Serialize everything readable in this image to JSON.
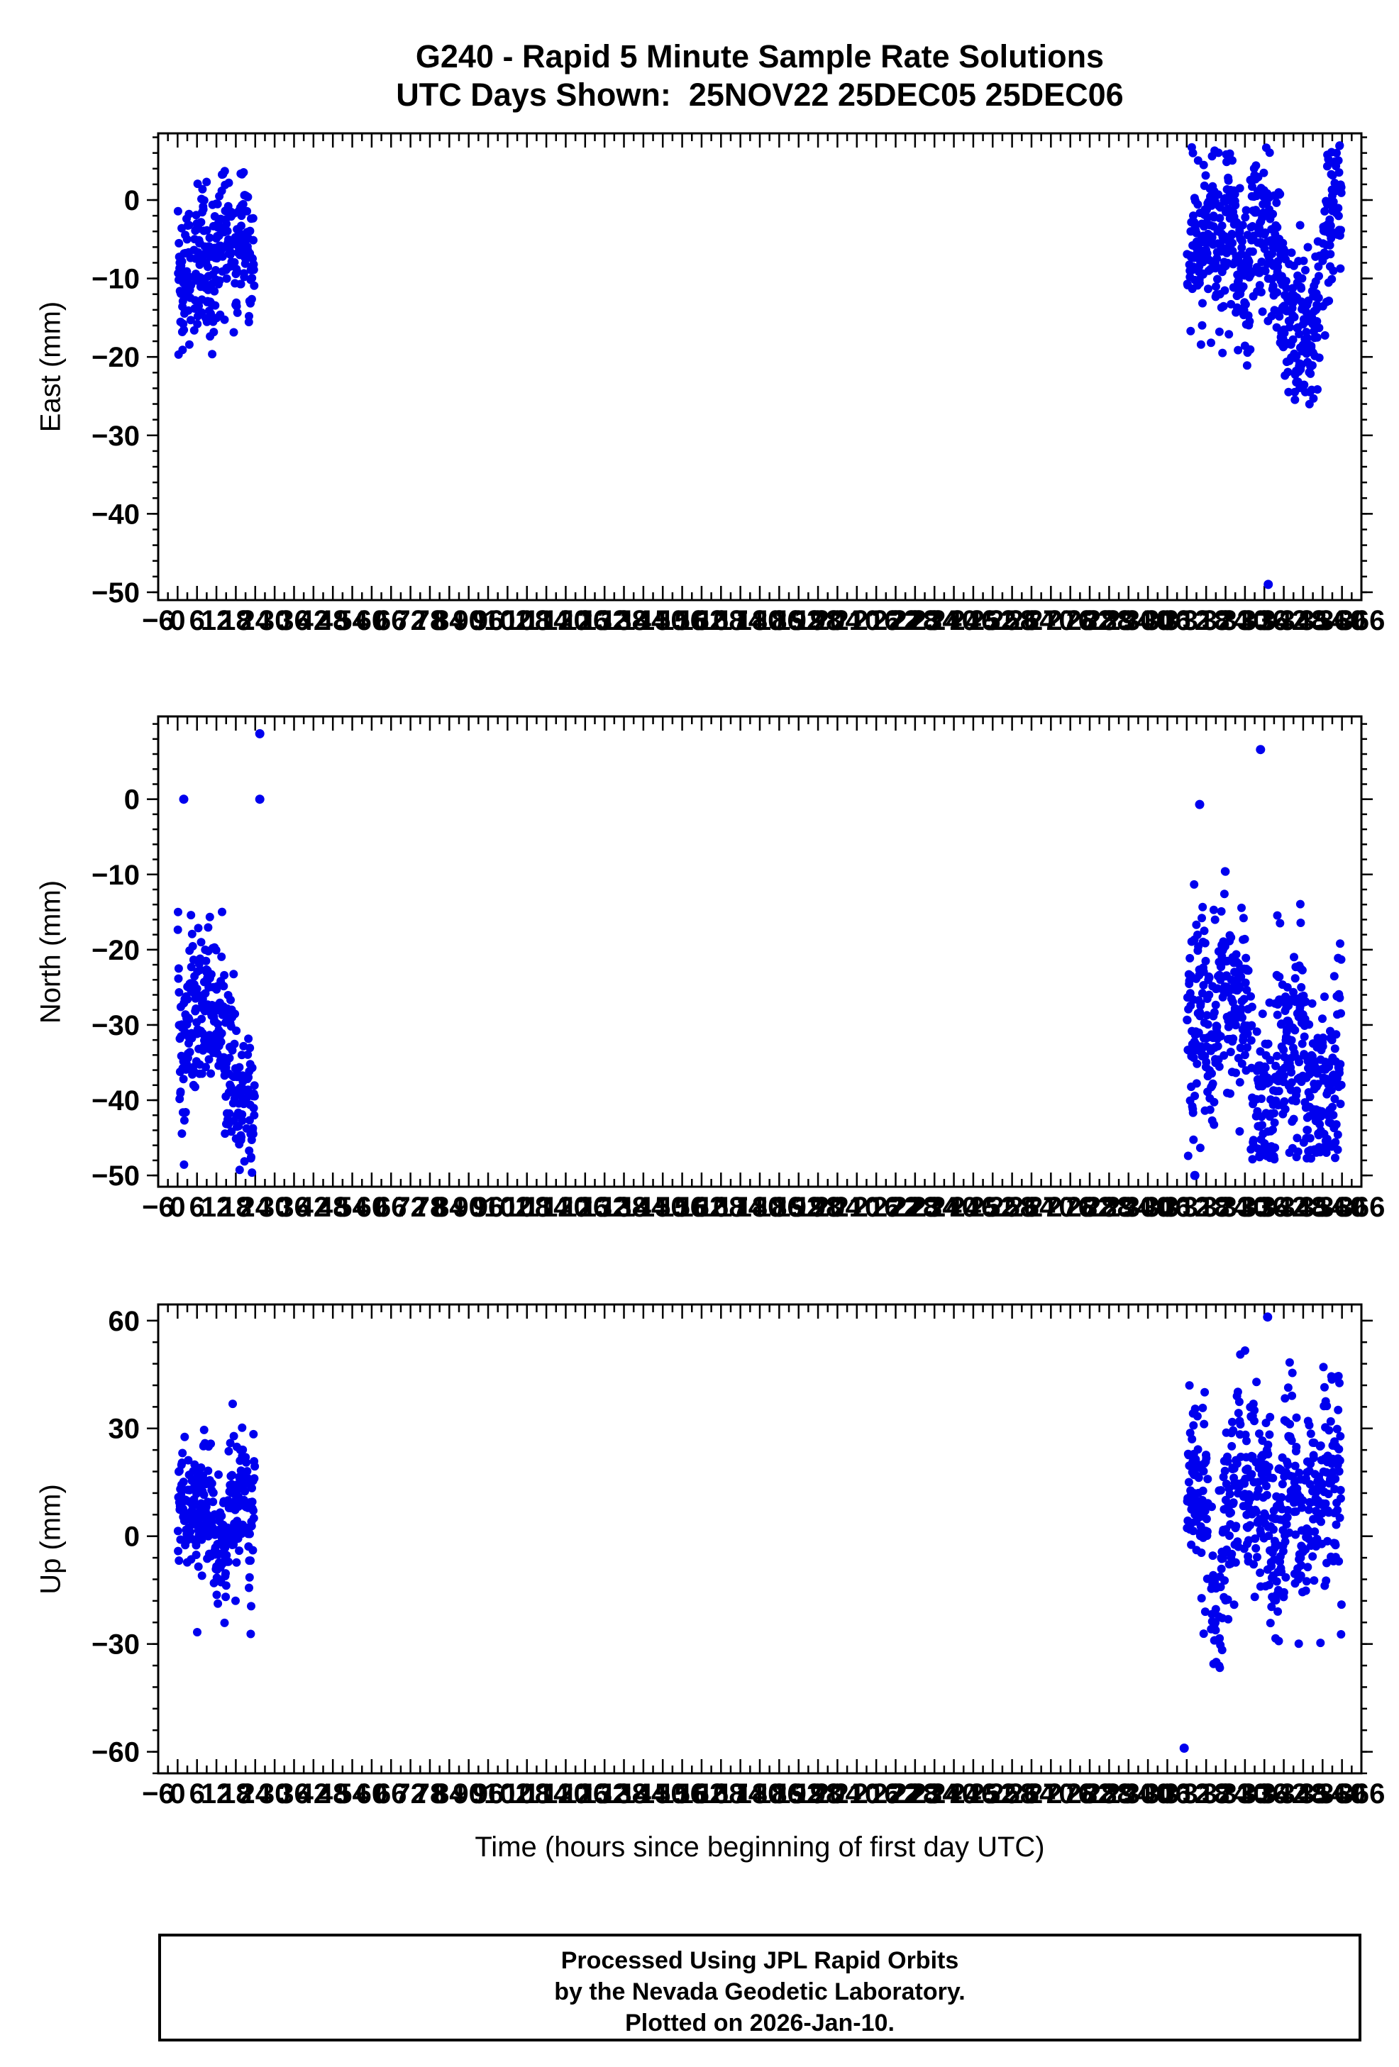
{
  "chart_data": {
    "type": "scatter",
    "title": "G240 - Rapid 5 Minute Sample Rate Solutions",
    "subtitle": "UTC Days Shown:  25NOV22 25DEC05 25DEC06",
    "station": "G240",
    "utc_days": [
      "25NOV22",
      "25DEC05",
      "25DEC06"
    ],
    "xlabel": "Time (hours since beginning of first day UTC)",
    "xlim": [
      -6,
      366
    ],
    "x_major_tick": 6,
    "x_minor_tick": 3,
    "marker_color": "#0000EE",
    "frame_color": "#000000",
    "panels": [
      {
        "ylabel": "East (mm)",
        "ylim": [
          -51,
          8.5
        ],
        "yticks": [
          0,
          -10,
          -20,
          -30,
          -40,
          -50
        ],
        "y_minor_tick": 2,
        "clusters": [
          {
            "x_start": 0.1,
            "x_end": 23.9,
            "n": 288,
            "mean": -9,
            "std": 4.3,
            "walk": 3,
            "y_min": -23,
            "y_max": 4.2
          },
          {
            "x_start": 312.1,
            "x_end": 359.9,
            "n": 576,
            "mean": -10,
            "std": 5,
            "walk": 3.5,
            "y_min": -27.5,
            "y_max": 7
          }
        ],
        "outliers": [
          [
            337.2,
            -49
          ]
        ]
      },
      {
        "ylabel": "North (mm)",
        "ylim": [
          -51.5,
          11
        ],
        "yticks": [
          0,
          -10,
          -20,
          -30,
          -40,
          -50
        ],
        "y_minor_tick": 2,
        "clusters": [
          {
            "x_start": 0.1,
            "x_end": 23.9,
            "n": 288,
            "mean": -30,
            "std": 6.2,
            "walk": 4,
            "y_min": -50,
            "y_max": -14.5
          },
          {
            "x_start": 312.1,
            "x_end": 359.9,
            "n": 576,
            "mean": -30,
            "std": 7,
            "walk": 4,
            "y_min": -48,
            "y_max": -9.5
          }
        ],
        "outliers": [
          [
            1.9,
            0
          ],
          [
            25.4,
            8.7
          ],
          [
            25.4,
            0
          ],
          [
            334.8,
            6.6
          ],
          [
            316.0,
            -0.7
          ],
          [
            314.5,
            -50
          ]
        ]
      },
      {
        "ylabel": "Up (mm)",
        "ylim": [
          -66,
          64.5
        ],
        "yticks": [
          60,
          30,
          0,
          -30,
          -60
        ],
        "y_minor_tick": 6,
        "clusters": [
          {
            "x_start": 0.1,
            "x_end": 23.9,
            "n": 288,
            "mean": 12,
            "std": 9.5,
            "walk": 7,
            "y_min": -28,
            "y_max": 44
          },
          {
            "x_start": 312.1,
            "x_end": 359.9,
            "n": 576,
            "mean": 7,
            "std": 13,
            "walk": 8,
            "y_min": -37,
            "y_max": 52
          }
        ],
        "outliers": [
          [
            337.0,
            61
          ],
          [
            311.2,
            -59
          ]
        ]
      }
    ],
    "footer": [
      "Processed Using JPL Rapid Orbits",
      "by the Nevada Geodetic Laboratory.",
      "Plotted on 2026-Jan-10."
    ]
  }
}
